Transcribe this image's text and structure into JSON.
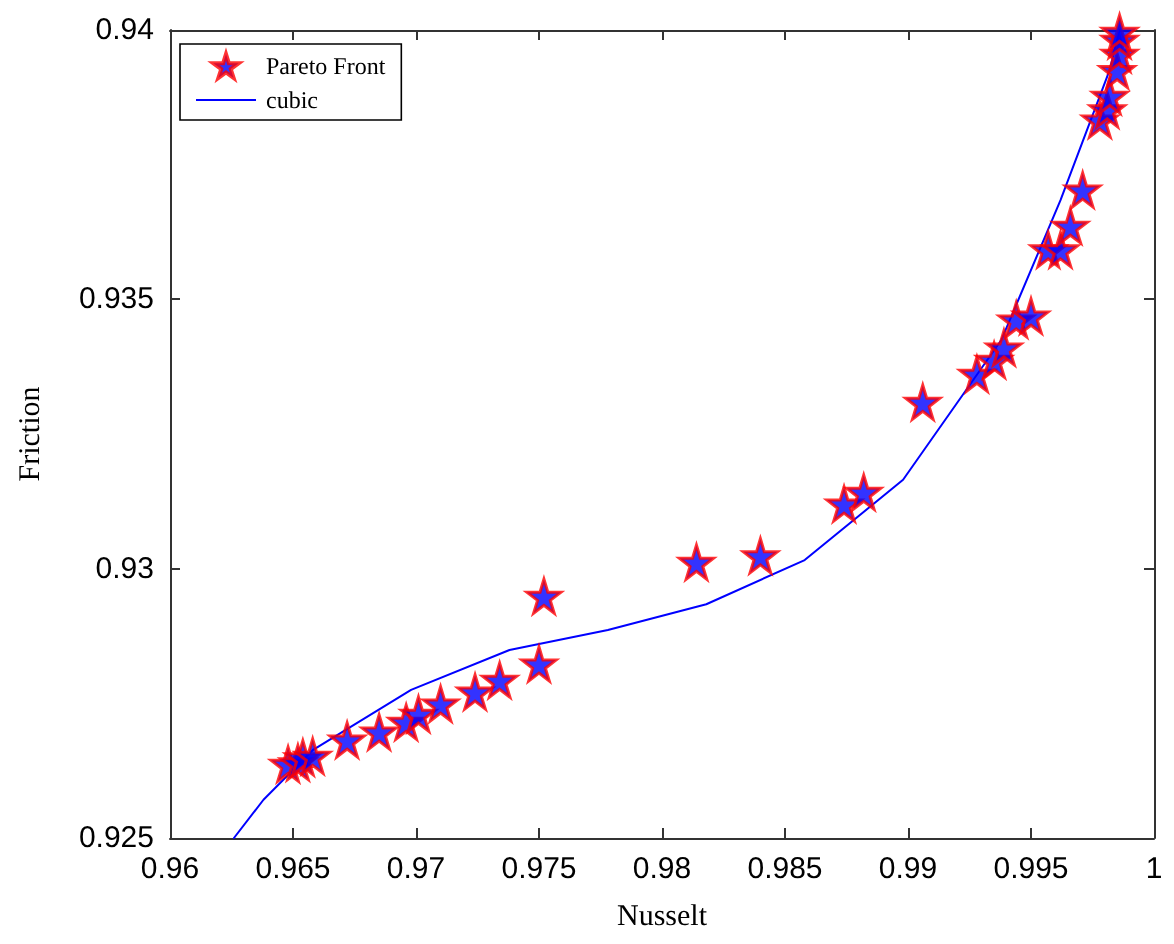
{
  "chart_data": {
    "type": "scatter",
    "xlabel": "Nusselt",
    "ylabel": "Friction",
    "xlim": [
      0.96,
      1
    ],
    "xticks": [
      0.96,
      0.965,
      0.97,
      0.975,
      0.98,
      0.985,
      0.99,
      0.995,
      1
    ],
    "ylim": [
      0.925,
      0.94
    ],
    "yticks": [
      0.925,
      0.93,
      0.935,
      0.94
    ],
    "grid": false,
    "legend": "top left",
    "series": [
      {
        "name": "Pareto Front",
        "marker": "star",
        "color": "#0000ff",
        "x": [
          0.9648,
          0.9652,
          0.9654,
          0.9658,
          0.9672,
          0.9685,
          0.9696,
          0.9701,
          0.971,
          0.9724,
          0.9734,
          0.975,
          0.9752,
          0.9814,
          0.984,
          0.9874,
          0.9882,
          0.9906,
          0.9928,
          0.9935,
          0.9939,
          0.9944,
          0.995,
          0.9957,
          0.9962,
          0.9966,
          0.9971,
          0.9978,
          0.9981,
          0.9982,
          0.9985,
          0.9986,
          0.9986,
          0.9986
        ],
        "values": [
          0.92637,
          0.9264,
          0.92649,
          0.92652,
          0.92682,
          0.92697,
          0.92715,
          0.9273,
          0.92749,
          0.92771,
          0.92793,
          0.92823,
          0.92949,
          0.93012,
          0.93024,
          0.9312,
          0.93142,
          0.93309,
          0.93361,
          0.93387,
          0.9341,
          0.93462,
          0.93469,
          0.93592,
          0.93592,
          0.93636,
          0.93703,
          0.93833,
          0.93852,
          0.93877,
          0.93925,
          0.93955,
          0.93981,
          0.93996
        ]
      },
      {
        "name": "cubic",
        "type": "line",
        "marker": "none",
        "line_style": "solid",
        "color": "#0000ff",
        "x": [
          0.9626,
          0.9638,
          0.9658,
          0.9698,
          0.9738,
          0.9778,
          0.9818,
          0.9858,
          0.9898,
          0.9938,
          0.9962,
          0.9982,
          0.9986
        ],
        "values": [
          0.925,
          0.92571,
          0.92663,
          0.92775,
          0.92849,
          0.92886,
          0.92934,
          0.93016,
          0.93165,
          0.93425,
          0.93684,
          0.93926,
          0.94
        ]
      }
    ]
  }
}
